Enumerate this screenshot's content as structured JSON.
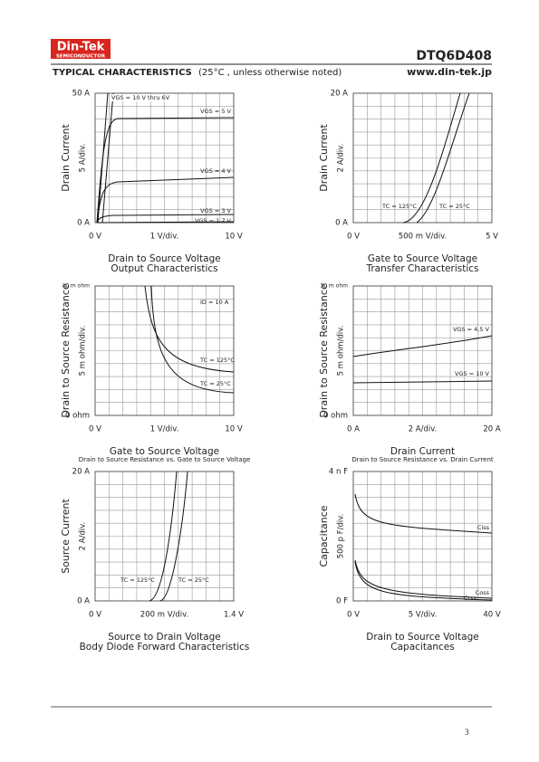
{
  "header": {
    "logo": "Din-Tek",
    "logo_sub": "SEMICONDUCTOR",
    "part": "DTQ6D408",
    "section": "TYPICAL CHARACTERISTICS",
    "section_note": "(25°C , unless otherwise noted)",
    "url": "www.din-tek.jp"
  },
  "panels": [
    {
      "y_title": "Drain Current",
      "y_top": "50  A",
      "y_div": "5  A/div.",
      "y_bottom": "0  A",
      "x_left": "0  V",
      "x_div": "1  V/div.",
      "x_right": "10  V",
      "caption": "Drain to Source Voltage",
      "subcaption": "Output Characteristics",
      "annotations": [
        "VGS = 10 V thru 6V",
        "VGS = 5 V",
        "VGS = 4 V",
        "VGS = 3 V",
        "VGS = 1.7 V"
      ]
    },
    {
      "y_title": "Drain Current",
      "y_top": "20  A",
      "y_div": "2  A/div.",
      "y_bottom": "0  A",
      "x_left": "0  V",
      "x_div": "500 m V/div.",
      "x_right": "5  V",
      "caption": "Gate to Source Voltage",
      "subcaption": "Transfer Characteristics",
      "annotations": [
        "TC = 125°C",
        "TC = 25°C"
      ]
    },
    {
      "y_title": "Drain to Source Resistance",
      "y_top": "40 m ohm",
      "y_div": "5 m ohm/div.",
      "y_bottom": "0  ohm",
      "x_left": "0  V",
      "x_div": "1  V/div.",
      "x_right": "10  V",
      "caption": "Gate to Source Voltage",
      "subcaption": "Drain to Source Resistance vs. Gate to Source Voltage",
      "annotations": [
        "ID = 10 A",
        "TC = 125°C",
        "TC = 25°C"
      ]
    },
    {
      "y_title": "Drain to Source Resistance",
      "y_top": "30 m ohm",
      "y_div": "5 m ohm/div.",
      "y_bottom": "0  ohm",
      "x_left": "0  A",
      "x_div": "2  A/div.",
      "x_right": "20  A",
      "caption": "Drain Current",
      "subcaption": "Drain to Source Resistance vs. Drain Current",
      "annotations": [
        "VGS = 4.5 V",
        "VGS = 10 V"
      ]
    },
    {
      "y_title": "Source Current",
      "y_top": "20  A",
      "y_div": "2  A/div.",
      "y_bottom": "0  A",
      "x_left": "0  V",
      "x_div": "200 m V/div.",
      "x_right": "1.4  V",
      "caption": "Source to Drain Voltage",
      "subcaption": "Body Diode Forward Characteristics",
      "annotations": [
        "TC = 125°C",
        "TC = 25°C"
      ]
    },
    {
      "y_title": "Capacitance",
      "y_top": "4 n F",
      "y_div": "500 p F/div.",
      "y_bottom": "0  F",
      "x_left": "0  V",
      "x_div": "5  V/div.",
      "x_right": "40  V",
      "caption": "Drain to Source Voltage",
      "subcaption": "Capacitances",
      "annotations": [
        "Ciss",
        "Crss",
        "Coss"
      ]
    }
  ],
  "footer": {
    "page": "3"
  }
}
